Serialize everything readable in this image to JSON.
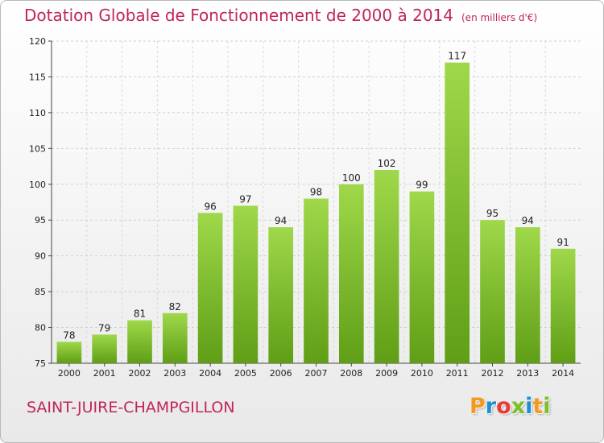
{
  "title": "Dotation Globale de Fonctionnement de 2000 à 2014",
  "subtitle": "(en milliers d'€)",
  "commune": "SAINT-JUIRE-CHAMPGILLON",
  "brand": {
    "letters": [
      "P",
      "r",
      "o",
      "x",
      "i",
      "t",
      "i"
    ],
    "colors": [
      "#f39a1e",
      "#1e8fd5",
      "#e93b35",
      "#7cbf2a",
      "#1e8fd5",
      "#f39a1e",
      "#7cbf2a"
    ]
  },
  "chart_data": {
    "type": "bar",
    "categories": [
      "2000",
      "2001",
      "2002",
      "2003",
      "2004",
      "2005",
      "2006",
      "2007",
      "2008",
      "2009",
      "2010",
      "2011",
      "2012",
      "2013",
      "2014"
    ],
    "values": [
      78,
      79,
      81,
      82,
      96,
      97,
      94,
      98,
      100,
      102,
      99,
      117,
      95,
      94,
      91
    ],
    "ylim": [
      75,
      120
    ],
    "yticks": [
      75,
      80,
      85,
      90,
      95,
      100,
      105,
      110,
      115,
      120
    ],
    "grid": true,
    "bar_color": "#7cc12e",
    "title": "Dotation Globale de Fonctionnement de 2000 à 2014",
    "xlabel": "",
    "ylabel": ""
  }
}
